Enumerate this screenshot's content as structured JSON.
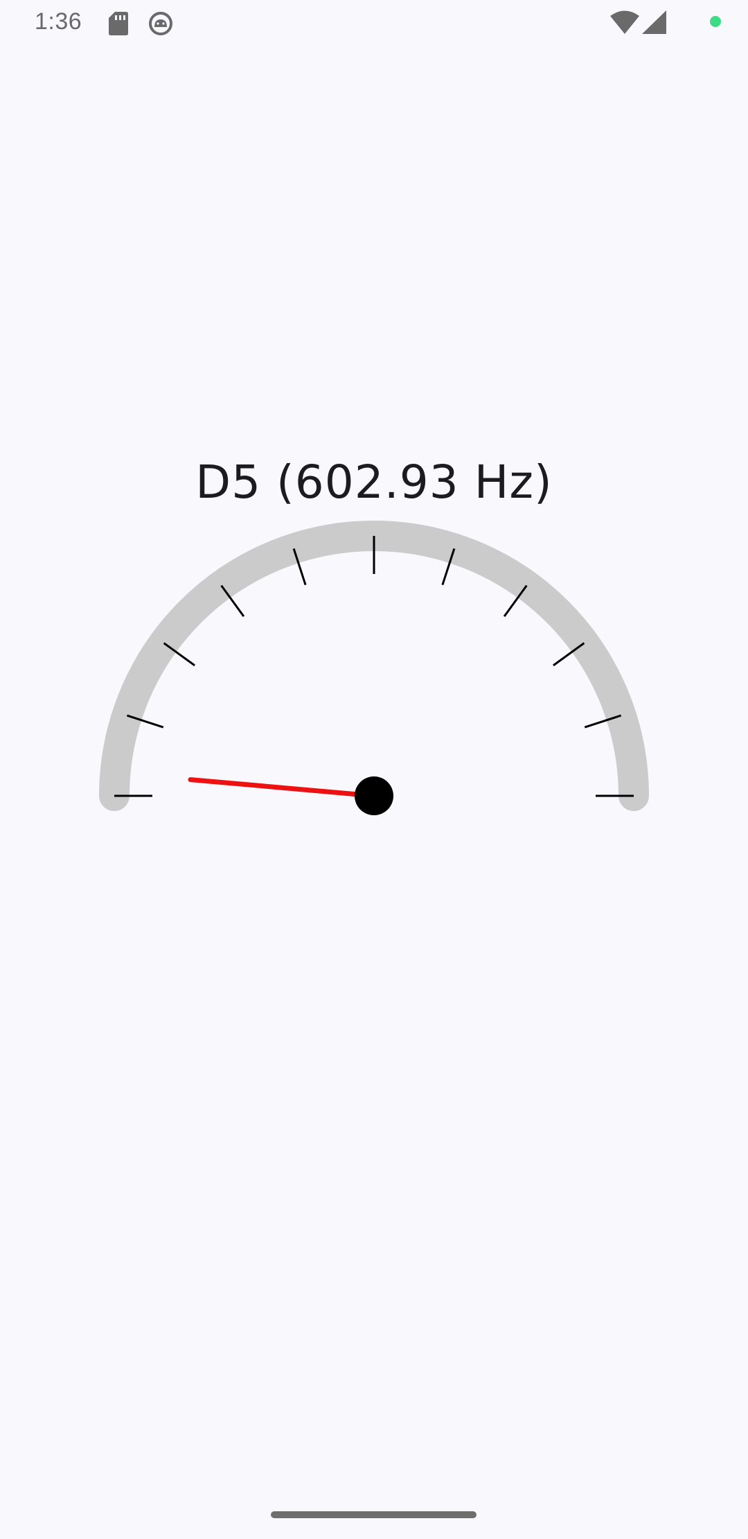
{
  "status_bar": {
    "time": "1:36",
    "icons": [
      "sd-card-icon",
      "android-debug-icon",
      "wifi-icon",
      "cell-signal-icon",
      "privacy-dot-icon"
    ],
    "privacy_dot_color": "#3ddc84"
  },
  "tuner": {
    "note_label": "D5 (602.93 Hz)",
    "needle_fraction": 0.028,
    "tick_count": 11,
    "colors": {
      "track": "#cbcbcb",
      "needle": "#ee1111",
      "hub": "#000000",
      "ticks": "#000000"
    }
  },
  "nav": {
    "handle": "gesture-handle"
  }
}
